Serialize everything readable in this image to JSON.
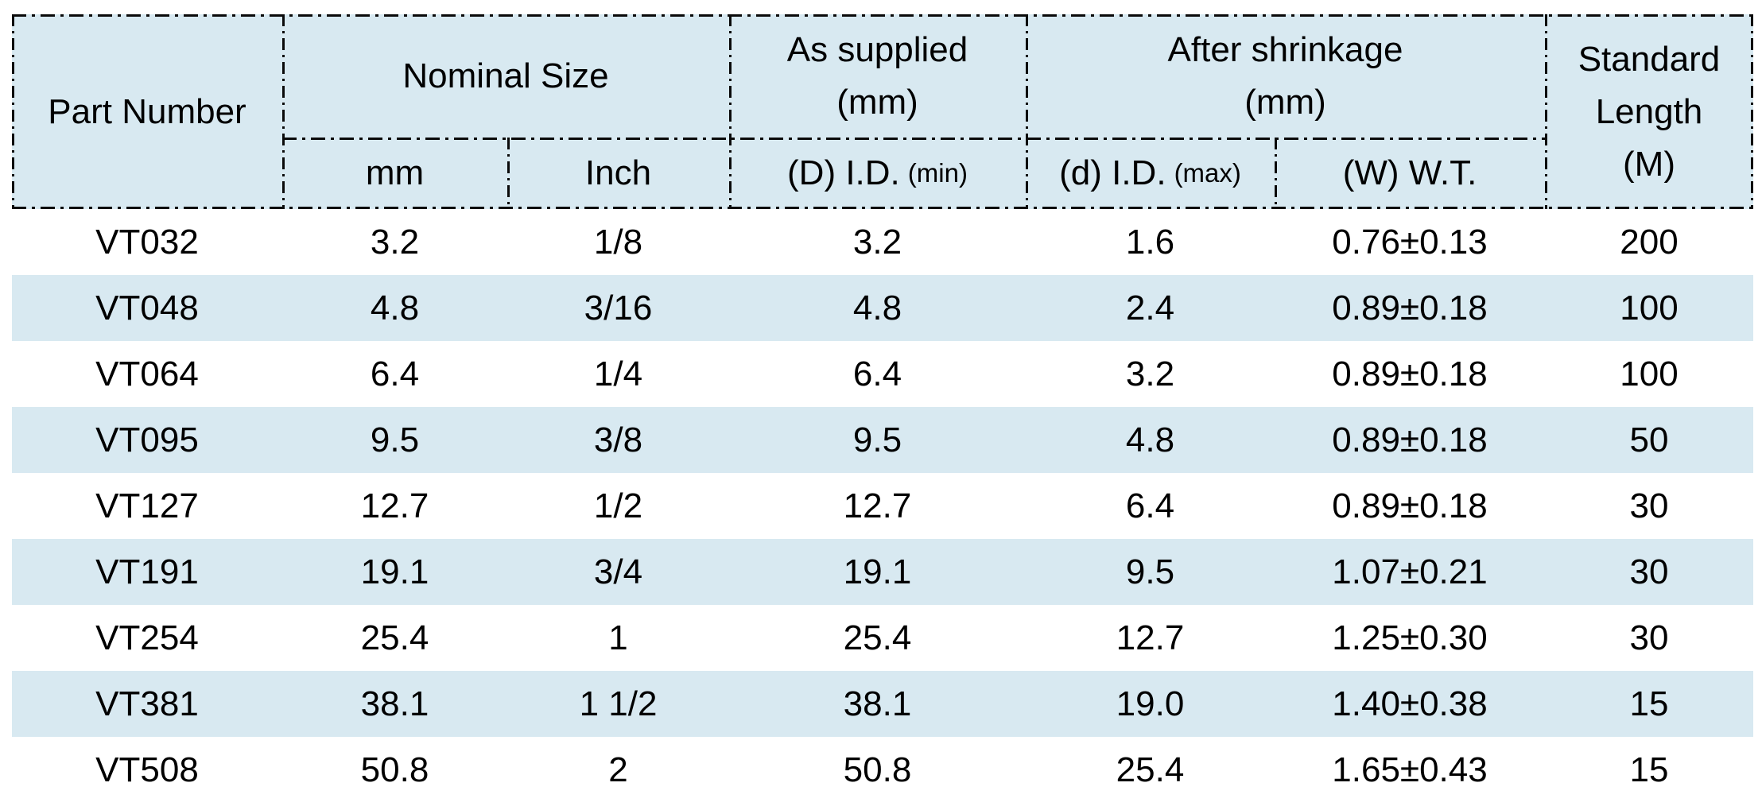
{
  "table": {
    "header": {
      "part_number": "Part Number",
      "nominal_size": "Nominal Size",
      "as_supplied": {
        "line1": "As supplied",
        "line2": "(mm)"
      },
      "after_shrinkage": {
        "line1": "After shrinkage",
        "line2": "(mm)"
      },
      "standard_length": {
        "line1": "Standard",
        "line2": "Length",
        "line3": "(M)"
      },
      "sub": {
        "mm": "mm",
        "inch": "Inch",
        "supplied_id": {
          "main": "(D) I.D.",
          "small": "(min)"
        },
        "shrink_id": {
          "main": "(d) I.D.",
          "small": "(max)"
        },
        "wall_thickness": "(W) W.T."
      }
    },
    "rows": [
      {
        "part": "VT032",
        "mm": "3.2",
        "inch": "1/8",
        "supplied_id": "3.2",
        "shrink_id": "1.6",
        "wall": "0.76±0.13",
        "length": "200"
      },
      {
        "part": "VT048",
        "mm": "4.8",
        "inch": "3/16",
        "supplied_id": "4.8",
        "shrink_id": "2.4",
        "wall": "0.89±0.18",
        "length": "100"
      },
      {
        "part": "VT064",
        "mm": "6.4",
        "inch": "1/4",
        "supplied_id": "6.4",
        "shrink_id": "3.2",
        "wall": "0.89±0.18",
        "length": "100"
      },
      {
        "part": "VT095",
        "mm": "9.5",
        "inch": "3/8",
        "supplied_id": "9.5",
        "shrink_id": "4.8",
        "wall": "0.89±0.18",
        "length": "50"
      },
      {
        "part": "VT127",
        "mm": "12.7",
        "inch": "1/2",
        "supplied_id": "12.7",
        "shrink_id": "6.4",
        "wall": "0.89±0.18",
        "length": "30"
      },
      {
        "part": "VT191",
        "mm": "19.1",
        "inch": "3/4",
        "supplied_id": "19.1",
        "shrink_id": "9.5",
        "wall": "1.07±0.21",
        "length": "30"
      },
      {
        "part": "VT254",
        "mm": "25.4",
        "inch": "1",
        "supplied_id": "25.4",
        "shrink_id": "12.7",
        "wall": "1.25±0.30",
        "length": "30"
      },
      {
        "part": "VT381",
        "mm": "38.1",
        "inch": "1 1/2",
        "supplied_id": "38.1",
        "shrink_id": "19.0",
        "wall": "1.40±0.38",
        "length": "15"
      },
      {
        "part": "VT508",
        "mm": "50.8",
        "inch": "2",
        "supplied_id": "50.8",
        "shrink_id": "25.4",
        "wall": "1.65±0.43",
        "length": "15"
      }
    ],
    "colors": {
      "header_background": "#d8e9f1",
      "stripe_background": "#d8e9f1",
      "border": "#0a0a0a",
      "text": "#000000"
    }
  }
}
